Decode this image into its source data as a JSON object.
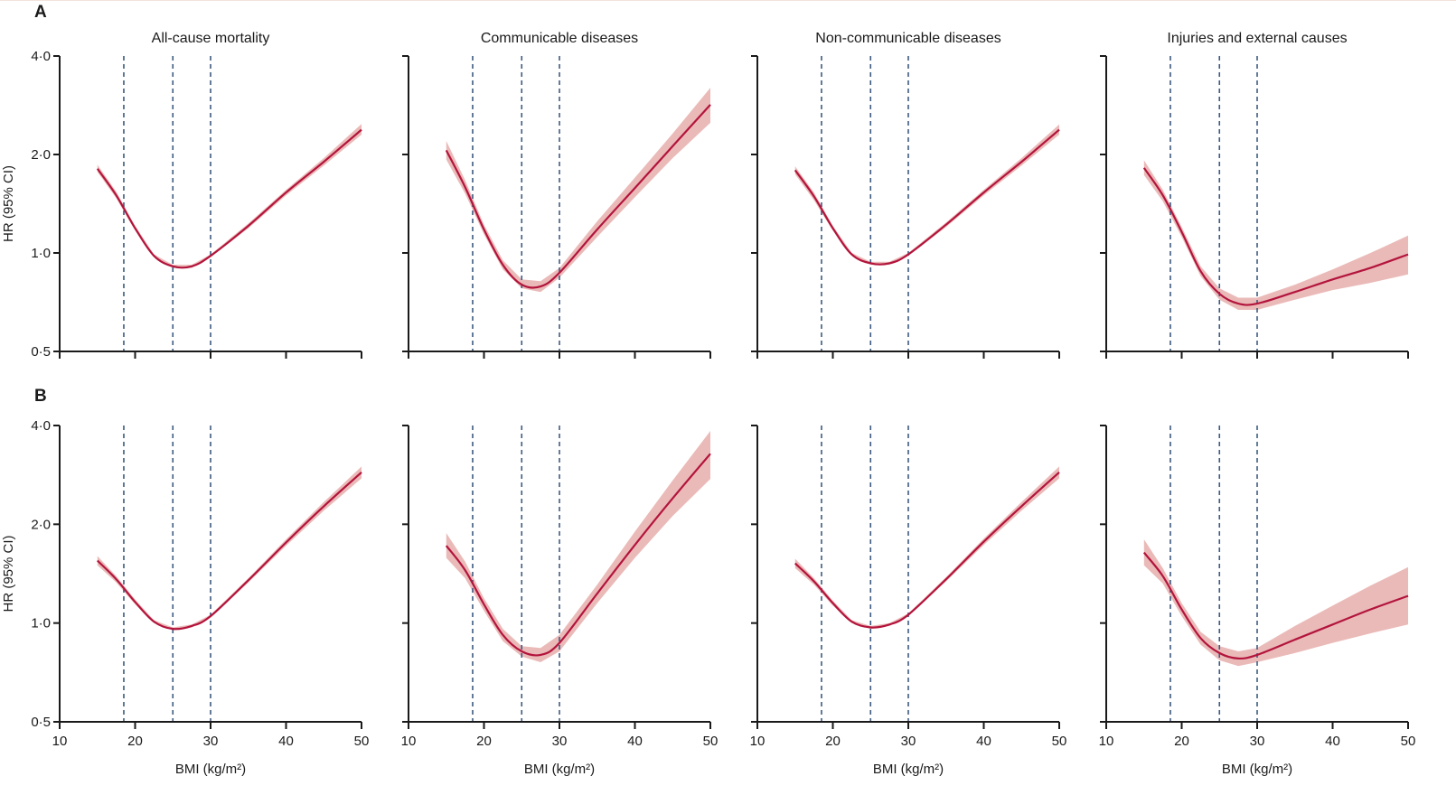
{
  "figure": {
    "colors": {
      "curve": "#b3143c",
      "band": "#e8b3b0",
      "ref_line": "#3d5a80",
      "axis": "#1a1a1a"
    }
  },
  "chart_data": [
    {
      "type": "line",
      "row_label": "A",
      "title": "All-cause mortality",
      "xlabel": "BMI (kg/m²)",
      "ylabel": "HR (95% CI)",
      "xlim": [
        10,
        50
      ],
      "ylim": [
        0.5,
        4.0
      ],
      "yscale": "log2",
      "xticks": [
        10,
        20,
        30,
        40,
        50
      ],
      "yticks": [
        0.5,
        1.0,
        2.0,
        4.0
      ],
      "ytick_labels": [
        "0·5",
        "1·0",
        "2·0",
        "4·0"
      ],
      "reference_lines_x": [
        18.5,
        25,
        30
      ],
      "series": [
        {
          "name": "HR",
          "x": [
            15,
            17.5,
            20,
            22.5,
            25,
            27.5,
            30,
            35,
            40,
            45,
            50
          ],
          "y": [
            1.81,
            1.5,
            1.19,
            0.98,
            0.91,
            0.91,
            0.98,
            1.21,
            1.53,
            1.9,
            2.38
          ],
          "lower": [
            1.77,
            1.47,
            1.17,
            0.97,
            0.9,
            0.9,
            0.97,
            1.19,
            1.5,
            1.85,
            2.3
          ],
          "upper": [
            1.86,
            1.54,
            1.21,
            0.99,
            0.92,
            0.92,
            0.99,
            1.23,
            1.56,
            1.95,
            2.48
          ]
        }
      ]
    },
    {
      "type": "line",
      "row_label": "A",
      "title": "Communicable diseases",
      "xlabel": "BMI (kg/m²)",
      "ylabel": "HR (95% CI)",
      "xlim": [
        10,
        50
      ],
      "ylim": [
        0.5,
        4.0
      ],
      "yscale": "log2",
      "xticks": [
        10,
        20,
        30,
        40,
        50
      ],
      "yticks": [
        0.5,
        1.0,
        2.0,
        4.0
      ],
      "ytick_labels": [
        "0·5",
        "1·0",
        "2·0",
        "4·0"
      ],
      "reference_lines_x": [
        18.5,
        25,
        30
      ],
      "series": [
        {
          "name": "HR",
          "x": [
            15,
            17.5,
            20,
            22.5,
            25,
            27.5,
            30,
            35,
            40,
            45,
            50
          ],
          "y": [
            2.06,
            1.59,
            1.18,
            0.92,
            0.8,
            0.79,
            0.87,
            1.18,
            1.58,
            2.12,
            2.84
          ],
          "lower": [
            1.93,
            1.52,
            1.14,
            0.89,
            0.78,
            0.76,
            0.84,
            1.12,
            1.48,
            1.95,
            2.5
          ],
          "upper": [
            2.2,
            1.67,
            1.22,
            0.95,
            0.83,
            0.82,
            0.9,
            1.25,
            1.7,
            2.32,
            3.2
          ]
        }
      ]
    },
    {
      "type": "line",
      "row_label": "A",
      "title": "Non-communicable diseases",
      "xlabel": "BMI (kg/m²)",
      "ylabel": "HR (95% CI)",
      "xlim": [
        10,
        50
      ],
      "ylim": [
        0.5,
        4.0
      ],
      "yscale": "log2",
      "xticks": [
        10,
        20,
        30,
        40,
        50
      ],
      "yticks": [
        0.5,
        1.0,
        2.0,
        4.0
      ],
      "ytick_labels": [
        "0·5",
        "1·0",
        "2·0",
        "4·0"
      ],
      "reference_lines_x": [
        18.5,
        25,
        30
      ],
      "series": [
        {
          "name": "HR",
          "x": [
            15,
            17.5,
            20,
            22.5,
            25,
            27.5,
            30,
            35,
            40,
            45,
            50
          ],
          "y": [
            1.79,
            1.49,
            1.19,
            0.99,
            0.93,
            0.93,
            0.99,
            1.22,
            1.53,
            1.9,
            2.38
          ],
          "lower": [
            1.74,
            1.45,
            1.17,
            0.98,
            0.92,
            0.92,
            0.98,
            1.2,
            1.5,
            1.85,
            2.3
          ],
          "upper": [
            1.84,
            1.53,
            1.21,
            1.0,
            0.94,
            0.94,
            1.0,
            1.24,
            1.56,
            1.95,
            2.47
          ]
        }
      ]
    },
    {
      "type": "line",
      "row_label": "A",
      "title": "Injuries and external causes",
      "xlabel": "BMI (kg/m²)",
      "ylabel": "HR (95% CI)",
      "xlim": [
        10,
        50
      ],
      "ylim": [
        0.5,
        4.0
      ],
      "yscale": "log2",
      "xticks": [
        10,
        20,
        30,
        40,
        50
      ],
      "yticks": [
        0.5,
        1.0,
        2.0,
        4.0
      ],
      "ytick_labels": [
        "0·5",
        "1·0",
        "2·0",
        "4·0"
      ],
      "reference_lines_x": [
        18.5,
        25,
        30
      ],
      "series": [
        {
          "name": "HR",
          "x": [
            15,
            17.5,
            20,
            22.5,
            25,
            27.5,
            30,
            35,
            40,
            45,
            50
          ],
          "y": [
            1.82,
            1.5,
            1.16,
            0.88,
            0.75,
            0.7,
            0.7,
            0.76,
            0.83,
            0.9,
            0.99
          ],
          "lower": [
            1.73,
            1.44,
            1.12,
            0.85,
            0.72,
            0.67,
            0.67,
            0.72,
            0.77,
            0.81,
            0.86
          ],
          "upper": [
            1.92,
            1.56,
            1.2,
            0.91,
            0.78,
            0.73,
            0.73,
            0.8,
            0.89,
            1.0,
            1.13
          ]
        }
      ]
    },
    {
      "type": "line",
      "row_label": "B",
      "title": "All-cause mortality",
      "xlabel": "BMI (kg/m²)",
      "ylabel": "HR (95% CI)",
      "xlim": [
        10,
        50
      ],
      "ylim": [
        0.5,
        4.0
      ],
      "yscale": "log2",
      "xticks": [
        10,
        20,
        30,
        40,
        50
      ],
      "yticks": [
        0.5,
        1.0,
        2.0,
        4.0
      ],
      "ytick_labels": [
        "0·5",
        "1·0",
        "2·0",
        "4·0"
      ],
      "reference_lines_x": [
        18.5,
        25,
        30
      ],
      "series": [
        {
          "name": "HR",
          "x": [
            15,
            17.5,
            20,
            22.5,
            25,
            27.5,
            30,
            35,
            40,
            45,
            50
          ],
          "y": [
            1.55,
            1.36,
            1.16,
            1.01,
            0.96,
            0.98,
            1.05,
            1.35,
            1.76,
            2.27,
            2.88
          ],
          "lower": [
            1.5,
            1.33,
            1.14,
            1.0,
            0.95,
            0.97,
            1.04,
            1.33,
            1.72,
            2.2,
            2.76
          ],
          "upper": [
            1.6,
            1.39,
            1.18,
            1.02,
            0.97,
            0.99,
            1.06,
            1.37,
            1.8,
            2.34,
            3.0
          ]
        }
      ]
    },
    {
      "type": "line",
      "row_label": "B",
      "title": "Communicable diseases",
      "xlabel": "BMI (kg/m²)",
      "ylabel": "HR (95% CI)",
      "xlim": [
        10,
        50
      ],
      "ylim": [
        0.5,
        4.0
      ],
      "yscale": "log2",
      "xticks": [
        10,
        20,
        30,
        40,
        50
      ],
      "yticks": [
        0.5,
        1.0,
        2.0,
        4.0
      ],
      "ytick_labels": [
        "0·5",
        "1·0",
        "2·0",
        "4·0"
      ],
      "reference_lines_x": [
        18.5,
        25,
        30
      ],
      "series": [
        {
          "name": "HR",
          "x": [
            15,
            17.5,
            20,
            22.5,
            25,
            27.5,
            30,
            35,
            40,
            45,
            50
          ],
          "y": [
            1.72,
            1.45,
            1.14,
            0.92,
            0.82,
            0.8,
            0.87,
            1.23,
            1.73,
            2.4,
            3.28
          ],
          "lower": [
            1.58,
            1.37,
            1.09,
            0.88,
            0.79,
            0.76,
            0.82,
            1.15,
            1.58,
            2.12,
            2.75
          ],
          "upper": [
            1.88,
            1.54,
            1.19,
            0.96,
            0.85,
            0.84,
            0.92,
            1.31,
            1.9,
            2.72,
            3.85
          ]
        }
      ]
    },
    {
      "type": "line",
      "row_label": "B",
      "title": "Non-communicable diseases",
      "xlabel": "BMI (kg/m²)",
      "ylabel": "HR (95% CI)",
      "xlim": [
        10,
        50
      ],
      "ylim": [
        0.5,
        4.0
      ],
      "yscale": "log2",
      "xticks": [
        10,
        20,
        30,
        40,
        50
      ],
      "yticks": [
        0.5,
        1.0,
        2.0,
        4.0
      ],
      "ytick_labels": [
        "0·5",
        "1·0",
        "2·0",
        "4·0"
      ],
      "reference_lines_x": [
        18.5,
        25,
        30
      ],
      "series": [
        {
          "name": "HR",
          "x": [
            15,
            17.5,
            20,
            22.5,
            25,
            27.5,
            30,
            35,
            40,
            45,
            50
          ],
          "y": [
            1.52,
            1.34,
            1.15,
            1.01,
            0.97,
            0.99,
            1.06,
            1.36,
            1.77,
            2.27,
            2.88
          ],
          "lower": [
            1.47,
            1.31,
            1.13,
            1.0,
            0.96,
            0.98,
            1.05,
            1.34,
            1.73,
            2.2,
            2.76
          ],
          "upper": [
            1.57,
            1.37,
            1.17,
            1.02,
            0.98,
            1.0,
            1.07,
            1.38,
            1.81,
            2.34,
            3.0
          ]
        }
      ]
    },
    {
      "type": "line",
      "row_label": "B",
      "title": "Injuries and external causes",
      "xlabel": "BMI (kg/m²)",
      "ylabel": "HR (95% CI)",
      "xlim": [
        10,
        50
      ],
      "ylim": [
        0.5,
        4.0
      ],
      "yscale": "log2",
      "xticks": [
        10,
        20,
        30,
        40,
        50
      ],
      "yticks": [
        0.5,
        1.0,
        2.0,
        4.0
      ],
      "ytick_labels": [
        "0·5",
        "1·0",
        "2·0",
        "4·0"
      ],
      "reference_lines_x": [
        18.5,
        25,
        30
      ],
      "series": [
        {
          "name": "HR",
          "x": [
            15,
            17.5,
            20,
            22.5,
            25,
            27.5,
            30,
            35,
            40,
            45,
            50
          ],
          "y": [
            1.64,
            1.39,
            1.1,
            0.9,
            0.81,
            0.78,
            0.8,
            0.89,
            0.99,
            1.1,
            1.21
          ],
          "lower": [
            1.5,
            1.32,
            1.05,
            0.86,
            0.77,
            0.74,
            0.76,
            0.81,
            0.87,
            0.93,
            0.99
          ],
          "upper": [
            1.8,
            1.47,
            1.15,
            0.94,
            0.85,
            0.82,
            0.84,
            0.98,
            1.13,
            1.3,
            1.48
          ]
        }
      ]
    }
  ]
}
